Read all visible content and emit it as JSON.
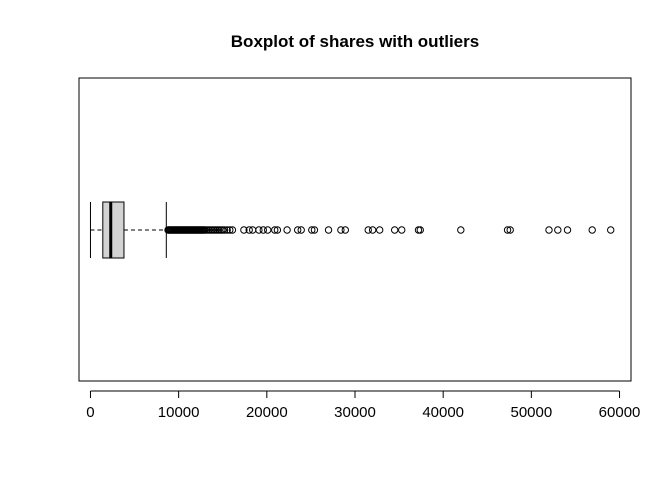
{
  "chart_data": {
    "type": "boxplot",
    "title": "Boxplot of shares with outliers",
    "xlabel": "",
    "ylabel": "",
    "orientation": "horizontal",
    "xlim": [
      -1300,
      61300
    ],
    "x_ticks": [
      0,
      10000,
      20000,
      30000,
      40000,
      50000,
      60000
    ],
    "x_tick_labels": [
      "0",
      "10000",
      "20000",
      "30000",
      "40000",
      "50000",
      "60000"
    ],
    "box": {
      "whisker_low": 1,
      "q1": 1400,
      "median": 2300,
      "q3": 3800,
      "whisker_high": 8600
    },
    "outliers": [
      8800,
      8900,
      9000,
      9100,
      9200,
      9300,
      9400,
      9500,
      9600,
      9700,
      9800,
      9900,
      10000,
      10100,
      10200,
      10300,
      10400,
      10500,
      10600,
      10700,
      10800,
      10900,
      11000,
      11100,
      11200,
      11300,
      11400,
      11500,
      11600,
      11700,
      11800,
      11900,
      12000,
      12100,
      12200,
      12300,
      12400,
      12500,
      12600,
      12700,
      12800,
      12900,
      13000,
      13200,
      13400,
      13600,
      13800,
      14000,
      14200,
      14400,
      14600,
      14800,
      15000,
      15200,
      15500,
      15800,
      16100,
      17400,
      18000,
      18400,
      19100,
      19600,
      20100,
      20900,
      21200,
      22300,
      23500,
      23900,
      25100,
      25400,
      27000,
      28400,
      28900,
      31500,
      32000,
      32800,
      34500,
      35300,
      37200,
      37400,
      42000,
      47300,
      47600,
      52000,
      53000,
      54100,
      56900,
      59000
    ],
    "colors": {
      "box_fill": "#d3d3d3",
      "stroke": "#000000"
    }
  }
}
